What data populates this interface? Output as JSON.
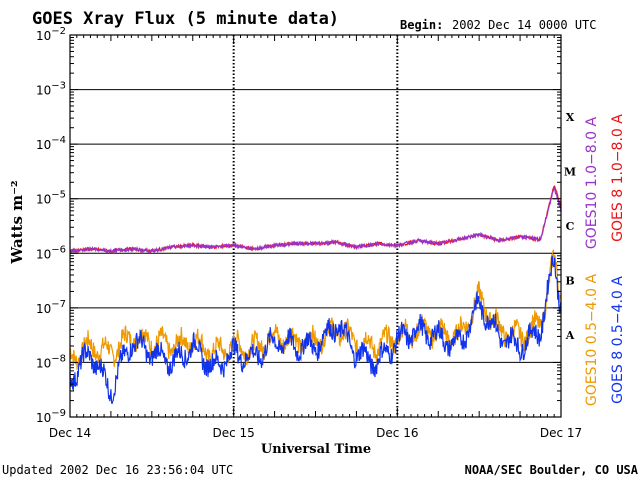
{
  "chart_data": {
    "type": "line",
    "title": "GOES Xray Flux (5 minute data)",
    "begin_label": "Begin:",
    "begin_value": "2002 Dec 14 0000 UTC",
    "ylabel": "Watts m⁻²",
    "xlabel": "Universal Time",
    "yscale": "log",
    "ylim": [
      1e-09,
      0.01
    ],
    "y_ticks": [
      {
        "value": 1e-09,
        "base": "10",
        "exp": "−9"
      },
      {
        "value": 1e-08,
        "base": "10",
        "exp": "−8"
      },
      {
        "value": 1e-07,
        "base": "10",
        "exp": "−7"
      },
      {
        "value": 1e-06,
        "base": "10",
        "exp": "−6"
      },
      {
        "value": 1e-05,
        "base": "10",
        "exp": "−5"
      },
      {
        "value": 0.0001,
        "base": "10",
        "exp": "−4"
      },
      {
        "value": 0.001,
        "base": "10",
        "exp": "−3"
      },
      {
        "value": 0.01,
        "base": "10",
        "exp": "−2"
      }
    ],
    "x_ticks": [
      "Dec 14",
      "Dec 15",
      "Dec 16",
      "Dec 17"
    ],
    "xlim_hours": [
      0,
      72
    ],
    "flare_classes": [
      {
        "label": "X",
        "level": 0.0001
      },
      {
        "label": "M",
        "level": 1e-05
      },
      {
        "label": "C",
        "level": 1e-06
      },
      {
        "label": "B",
        "level": 1e-07
      },
      {
        "label": "A",
        "level": 1e-08
      }
    ],
    "grid": true,
    "series": [
      {
        "name": "GOES10 1.0−8.0 A",
        "color": "#9933cc",
        "x": [
          0,
          3,
          6,
          9,
          12,
          15,
          18,
          21,
          24,
          27,
          30,
          33,
          36,
          39,
          42,
          45,
          48,
          51,
          54,
          57,
          60,
          63,
          66,
          69,
          71,
          72
        ],
        "y": [
          1.1e-06,
          1.2e-06,
          1.1e-06,
          1.2e-06,
          1.1e-06,
          1.3e-06,
          1.4e-06,
          1.3e-06,
          1.4e-06,
          1.2e-06,
          1.4e-06,
          1.5e-06,
          1.5e-06,
          1.6e-06,
          1.3e-06,
          1.5e-06,
          1.4e-06,
          1.7e-06,
          1.5e-06,
          1.8e-06,
          2.2e-06,
          1.7e-06,
          2e-06,
          1.8e-06,
          1.6e-05,
          6e-06
        ]
      },
      {
        "name": "GOES 8 1.0−8.0 A",
        "color": "#ee1111",
        "x": [
          0,
          3,
          6,
          9,
          12,
          15,
          18,
          21,
          24,
          27,
          30,
          33,
          36,
          39,
          42,
          45,
          48,
          51,
          54,
          57,
          60,
          63,
          66,
          69,
          71,
          72
        ],
        "y": [
          1.1e-06,
          1.2e-06,
          1.1e-06,
          1.2e-06,
          1.1e-06,
          1.3e-06,
          1.4e-06,
          1.3e-06,
          1.4e-06,
          1.2e-06,
          1.4e-06,
          1.5e-06,
          1.5e-06,
          1.6e-06,
          1.3e-06,
          1.5e-06,
          1.4e-06,
          1.7e-06,
          1.5e-06,
          1.8e-06,
          2.2e-06,
          1.7e-06,
          2e-06,
          1.8e-06,
          1.8e-05,
          7e-06
        ]
      },
      {
        "name": "GOES10 0.5−4.0 A",
        "color": "#ee9900",
        "x": [
          0,
          3,
          6,
          9,
          12,
          15,
          18,
          21,
          24,
          27,
          30,
          33,
          36,
          39,
          42,
          45,
          48,
          51,
          54,
          57,
          60,
          63,
          66,
          69,
          71,
          72
        ],
        "y": [
          1.2e-08,
          2e-08,
          1.5e-08,
          3e-08,
          2.5e-08,
          2e-08,
          2.5e-08,
          1.5e-08,
          2e-08,
          1.8e-08,
          3e-08,
          2.5e-08,
          2.5e-08,
          4e-08,
          2.5e-08,
          2e-08,
          3e-08,
          4e-08,
          3.5e-08,
          3e-08,
          1.5e-07,
          4e-08,
          3e-08,
          5e-08,
          8e-07,
          1.5e-07
        ]
      },
      {
        "name": "GOES 8 0.5−4.0 A",
        "color": "#1133ee",
        "x": [
          0,
          3,
          6,
          9,
          12,
          15,
          18,
          21,
          24,
          27,
          30,
          33,
          36,
          39,
          42,
          45,
          48,
          51,
          54,
          57,
          60,
          63,
          66,
          69,
          71,
          72
        ],
        "y": [
          5e-09,
          1.5e-08,
          3e-09,
          2.5e-08,
          1.5e-08,
          1e-08,
          2e-08,
          8e-09,
          1.5e-08,
          1.2e-08,
          2.5e-08,
          2e-08,
          2e-08,
          5e-08,
          1.5e-08,
          1e-08,
          2.5e-08,
          4e-08,
          3e-08,
          2e-08,
          1.2e-07,
          3e-08,
          2e-08,
          4e-08,
          8e-07,
          1e-07
        ]
      }
    ]
  },
  "footer": {
    "updated": "Updated 2002 Dec 16 23:56:04 UTC",
    "source": "NOAA/SEC Boulder, CO USA"
  }
}
